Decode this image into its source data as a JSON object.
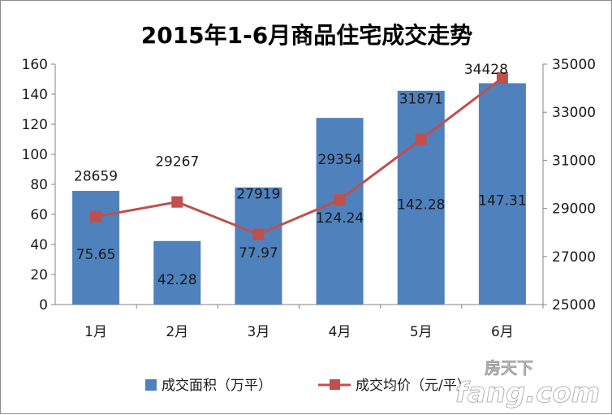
{
  "chart_data": {
    "type": "bar",
    "title": "2015年1-6月商品住宅成交走势",
    "categories": [
      "1月",
      "2月",
      "3月",
      "4月",
      "5月",
      "6月"
    ],
    "series": [
      {
        "name": "成交面积（万平）",
        "type": "bar",
        "axis": "left",
        "color": "#4f81bd",
        "values": [
          75.65,
          42.28,
          77.97,
          124.24,
          142.28,
          147.31
        ],
        "labels": [
          "75.65",
          "42.28",
          "77.97",
          "124.24",
          "142.28",
          "147.31"
        ]
      },
      {
        "name": "成交均价（元/平）",
        "type": "line",
        "axis": "right",
        "color": "#c0504d",
        "values": [
          28659,
          29267,
          27919,
          29354,
          31871,
          34428
        ],
        "labels": [
          "28659",
          "29267",
          "27919",
          "29354",
          "31871",
          "34428"
        ]
      }
    ],
    "y_left": {
      "min": 0,
      "max": 160,
      "ticks": [
        "0",
        "20",
        "40",
        "60",
        "80",
        "100",
        "120",
        "140",
        "160"
      ]
    },
    "y_right": {
      "min": 25000,
      "max": 35000,
      "ticks": [
        "25000",
        "27000",
        "29000",
        "31000",
        "33000",
        "35000"
      ]
    },
    "grid": false,
    "legend": "bottom"
  },
  "watermark": {
    "top": "房天下",
    "bottom": "fang.com"
  }
}
